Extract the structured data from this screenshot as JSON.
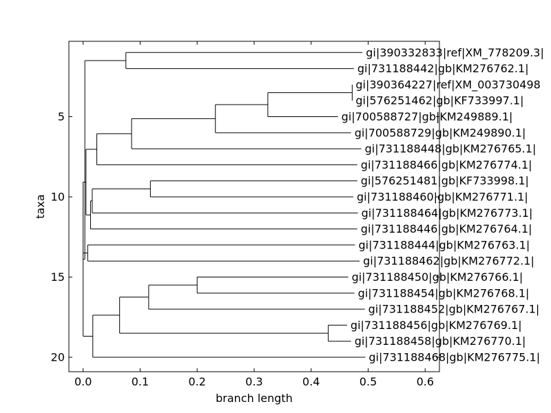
{
  "chart_data": {
    "type": "dendrogram",
    "xlabel": "branch length",
    "ylabel": "taxa",
    "xlim": [
      -0.025,
      0.625
    ],
    "ylim": [
      0.3,
      20.9
    ],
    "x_ticks": [
      0.0,
      0.1,
      0.2,
      0.3,
      0.4,
      0.5,
      0.6
    ],
    "x_tick_labels": [
      "0.0",
      "0.1",
      "0.2",
      "0.3",
      "0.4",
      "0.5",
      "0.6"
    ],
    "y_ticks": [
      5,
      10,
      15,
      20
    ],
    "y_tick_labels": [
      "5",
      "10",
      "15",
      "20"
    ],
    "leaves": [
      {
        "id": "L1",
        "label": "gi|390332833|ref|XM_778209.3|",
        "x": 0.49,
        "y": 1
      },
      {
        "id": "L2",
        "label": "gi|731188442|gb|KM276762.1|",
        "x": 0.475,
        "y": 2
      },
      {
        "id": "L3",
        "label": "gi|390364227|ref|XM_003730498",
        "x": 0.472,
        "y": 3
      },
      {
        "id": "L4",
        "label": "gi|576251462|gb|KF733997.1|",
        "x": 0.472,
        "y": 4
      },
      {
        "id": "L5",
        "label": "gi|700588727|gb|KM249889.1|",
        "x": 0.447,
        "y": 5
      },
      {
        "id": "L6",
        "label": "gi|700588729|gb|KM249890.1|",
        "x": 0.47,
        "y": 6
      },
      {
        "id": "L7",
        "label": "gi|731188448|gb|KM276765.1|",
        "x": 0.488,
        "y": 7
      },
      {
        "id": "L8",
        "label": "gi|731188466|gb|KM276774.1|",
        "x": 0.481,
        "y": 8
      },
      {
        "id": "L9",
        "label": "gi|576251481|gb|KF733998.1|",
        "x": 0.481,
        "y": 9
      },
      {
        "id": "L10",
        "label": "gi|731188460|gb|KM276771.1|",
        "x": 0.474,
        "y": 10
      },
      {
        "id": "L11",
        "label": "gi|731188464|gb|KM276773.1|",
        "x": 0.482,
        "y": 11
      },
      {
        "id": "L12",
        "label": "gi|731188446|gb|KM276764.1|",
        "x": 0.481,
        "y": 12
      },
      {
        "id": "L13",
        "label": "gi|731188444|gb|KM276763.1|",
        "x": 0.477,
        "y": 13
      },
      {
        "id": "L14",
        "label": "gi|731188462|gb|KM276772.1|",
        "x": 0.485,
        "y": 14
      },
      {
        "id": "L15",
        "label": "gi|731188450|gb|KM276766.1|",
        "x": 0.465,
        "y": 15
      },
      {
        "id": "L16",
        "label": "gi|731188454|gb|KM276768.1|",
        "x": 0.476,
        "y": 16
      },
      {
        "id": "L17",
        "label": "gi|731188452|gb|KM276767.1|",
        "x": 0.494,
        "y": 17
      },
      {
        "id": "L18",
        "label": "gi|731188456|gb|KM276769.1|",
        "x": 0.463,
        "y": 18
      },
      {
        "id": "L19",
        "label": "gi|731188458|gb|KM276770.1|",
        "x": 0.47,
        "y": 19
      },
      {
        "id": "L20",
        "label": "gi|731188468|gb|KM276775.1|",
        "x": 0.495,
        "y": 20
      }
    ],
    "internal_nodes": [
      {
        "id": "N1",
        "x": 0.075,
        "children": [
          "L1",
          "L2"
        ]
      },
      {
        "id": "N2",
        "x": 0.472,
        "children": [
          "L3",
          "L4"
        ]
      },
      {
        "id": "N3",
        "x": 0.324,
        "children": [
          "N2",
          "L5"
        ]
      },
      {
        "id": "N4",
        "x": 0.232,
        "children": [
          "N3",
          "L6"
        ]
      },
      {
        "id": "N5",
        "x": 0.085,
        "children": [
          "N4",
          "L7"
        ]
      },
      {
        "id": "N6",
        "x": 0.024,
        "children": [
          "N5",
          "L8"
        ]
      },
      {
        "id": "N7",
        "x": 0.118,
        "children": [
          "L9",
          "L10"
        ]
      },
      {
        "id": "N8",
        "x": 0.016,
        "children": [
          "N7",
          "L11"
        ]
      },
      {
        "id": "N9",
        "x": 0.013,
        "children": [
          "N8",
          "L12"
        ]
      },
      {
        "id": "N10",
        "x": 0.005,
        "children": [
          "N6",
          "N9"
        ]
      },
      {
        "id": "N11",
        "x": 0.008,
        "children": [
          "L13",
          "L14"
        ]
      },
      {
        "id": "N12",
        "x": 0.2,
        "children": [
          "L15",
          "L16"
        ]
      },
      {
        "id": "N13",
        "x": 0.115,
        "children": [
          "N12",
          "L17"
        ]
      },
      {
        "id": "N14",
        "x": 0.43,
        "children": [
          "L18",
          "L19"
        ]
      },
      {
        "id": "N15",
        "x": 0.064,
        "children": [
          "N13",
          "N14"
        ]
      },
      {
        "id": "N16",
        "x": 0.017,
        "children": [
          "N15",
          "L20"
        ]
      },
      {
        "id": "N17",
        "x": 0.0,
        "children": [
          "N10",
          "N11",
          "N16"
        ]
      },
      {
        "id": "N18",
        "x": 0.003,
        "children": [
          "N1",
          "N17"
        ]
      }
    ]
  }
}
